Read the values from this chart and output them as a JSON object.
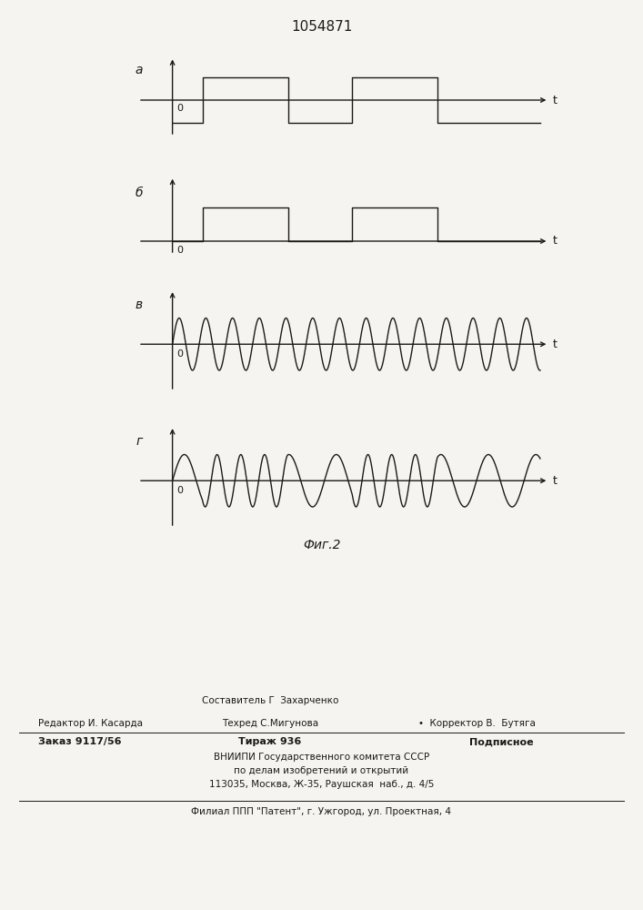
{
  "title": "1054871",
  "fig_caption": "Фиг.2",
  "background_color": "#f5f4f0",
  "line_color": "#1a1a1a",
  "label_a": "а",
  "label_b": "б",
  "label_v": "в",
  "label_g": "г",
  "zero_label": "0",
  "t_label": "t",
  "footer_sestavitel": "Составитель Г  Захарченко",
  "footer_redaktor": "Редактор И. Касарда",
  "footer_tehred": "Техред С.Мигунова",
  "footer_korrektor": "Корректор В.  Бутяга",
  "footer_zakaz": "Заказ 9117/56",
  "footer_tirazh": "Тираж 936",
  "footer_podpisnoe": "Подписное",
  "footer_vniipи": "ВНИИПИ Государственного комитета СССР",
  "footer_po_delam": "по делам изобретений и открытий",
  "footer_addr": "113035, Москва, Ж-35, Раушская  наб., д. 4/5",
  "footer_filial": "Филиал ППП \"Патент\", г. Ужгород, ул. Проектная, 4"
}
